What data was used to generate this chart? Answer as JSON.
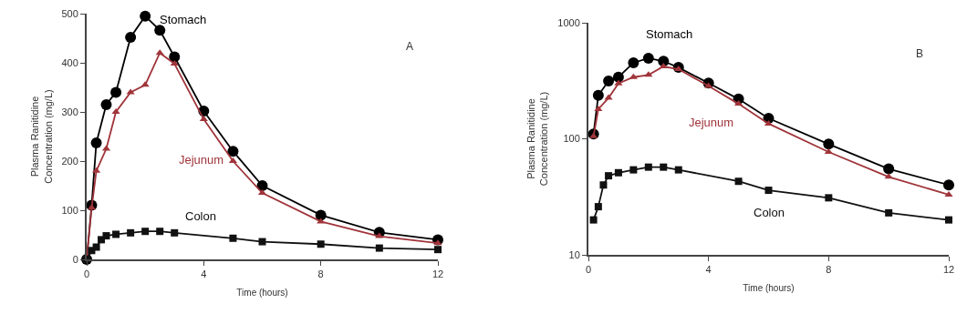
{
  "chart_data": [
    {
      "type": "line",
      "xlabel": "Time (hours)",
      "ylabel": "Plasma Ranitidine\nConcentration (mg/L)",
      "xlim": [
        0,
        12
      ],
      "xticks": [
        0,
        4,
        8,
        12
      ],
      "ylim": [
        0,
        500
      ],
      "yticks": [
        0,
        100,
        200,
        300,
        400,
        500
      ],
      "annotations": [
        "A"
      ],
      "series": [
        {
          "name": "Stomach",
          "color": "#000000",
          "marker": "circle",
          "x": [
            0,
            0.17,
            0.33,
            0.67,
            1,
            1.5,
            2,
            2.5,
            3,
            4,
            5,
            6,
            8,
            10,
            12
          ],
          "values": [
            0,
            110,
            237,
            315,
            340,
            452,
            495,
            466,
            412,
            302,
            220,
            150,
            90,
            55,
            40
          ]
        },
        {
          "name": "Jejunum",
          "color": "#a0343a",
          "marker": "triangle",
          "x": [
            0,
            0.17,
            0.33,
            0.67,
            1,
            1.5,
            2,
            2.5,
            3,
            4,
            5,
            6,
            8,
            10,
            12
          ],
          "values": [
            0,
            105,
            180,
            225,
            300,
            340,
            355,
            420,
            398,
            285,
            200,
            135,
            77,
            47,
            33
          ]
        },
        {
          "name": "Colon",
          "color": "#111111",
          "marker": "square",
          "x": [
            0,
            0.17,
            0.33,
            0.5,
            0.67,
            1,
            1.5,
            2,
            2.5,
            3,
            5,
            6,
            8,
            10,
            12
          ],
          "values": [
            0,
            18,
            25,
            40,
            48,
            51,
            54,
            57,
            57,
            54,
            43,
            36,
            31,
            23,
            20
          ]
        }
      ]
    },
    {
      "type": "line",
      "xlabel": "Time (hours)",
      "ylabel": "Plasma Ranitidine\nConcentration (mg/L)",
      "log": "y",
      "xlim": [
        0,
        12
      ],
      "xticks": [
        0,
        4,
        8,
        12
      ],
      "ylim": [
        10,
        1000
      ],
      "yticks": [
        10,
        100,
        1000
      ],
      "annotations": [
        "B"
      ],
      "series": [
        {
          "name": "Stomach",
          "color": "#000000",
          "marker": "circle",
          "x": [
            0.17,
            0.33,
            0.67,
            1,
            1.5,
            2,
            2.5,
            3,
            4,
            5,
            6,
            8,
            10,
            12
          ],
          "values": [
            110,
            237,
            315,
            340,
            452,
            495,
            466,
            412,
            302,
            220,
            150,
            90,
            55,
            40
          ]
        },
        {
          "name": "Jejunum",
          "color": "#a0343a",
          "marker": "triangle",
          "x": [
            0.17,
            0.33,
            0.67,
            1,
            1.5,
            2,
            2.5,
            3,
            4,
            5,
            6,
            8,
            10,
            12
          ],
          "values": [
            105,
            180,
            225,
            300,
            340,
            355,
            420,
            398,
            285,
            200,
            135,
            77,
            47,
            33
          ]
        },
        {
          "name": "Colon",
          "color": "#111111",
          "marker": "square",
          "x": [
            0.17,
            0.33,
            0.5,
            0.67,
            1,
            1.5,
            2,
            2.5,
            3,
            5,
            6,
            8,
            10,
            12
          ],
          "values": [
            20,
            26,
            40,
            48,
            51,
            54,
            57,
            57,
            54,
            43,
            36,
            31,
            23,
            20
          ]
        }
      ]
    }
  ]
}
